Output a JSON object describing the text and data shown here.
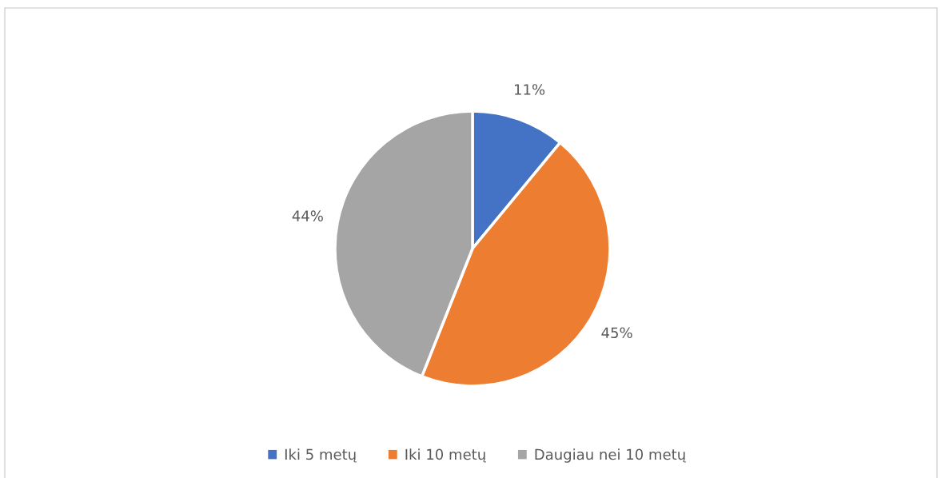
{
  "chart_data": {
    "type": "pie",
    "categories": [
      "Iki 5 metų",
      "Iki 10 metų",
      "Daugiau nei 10 metų"
    ],
    "values": [
      11,
      45,
      44
    ],
    "colors": [
      "#4472c4",
      "#ed7d31",
      "#a5a5a5"
    ],
    "value_labels": [
      "11%",
      "45%",
      "44%"
    ],
    "legend": "bottom"
  }
}
